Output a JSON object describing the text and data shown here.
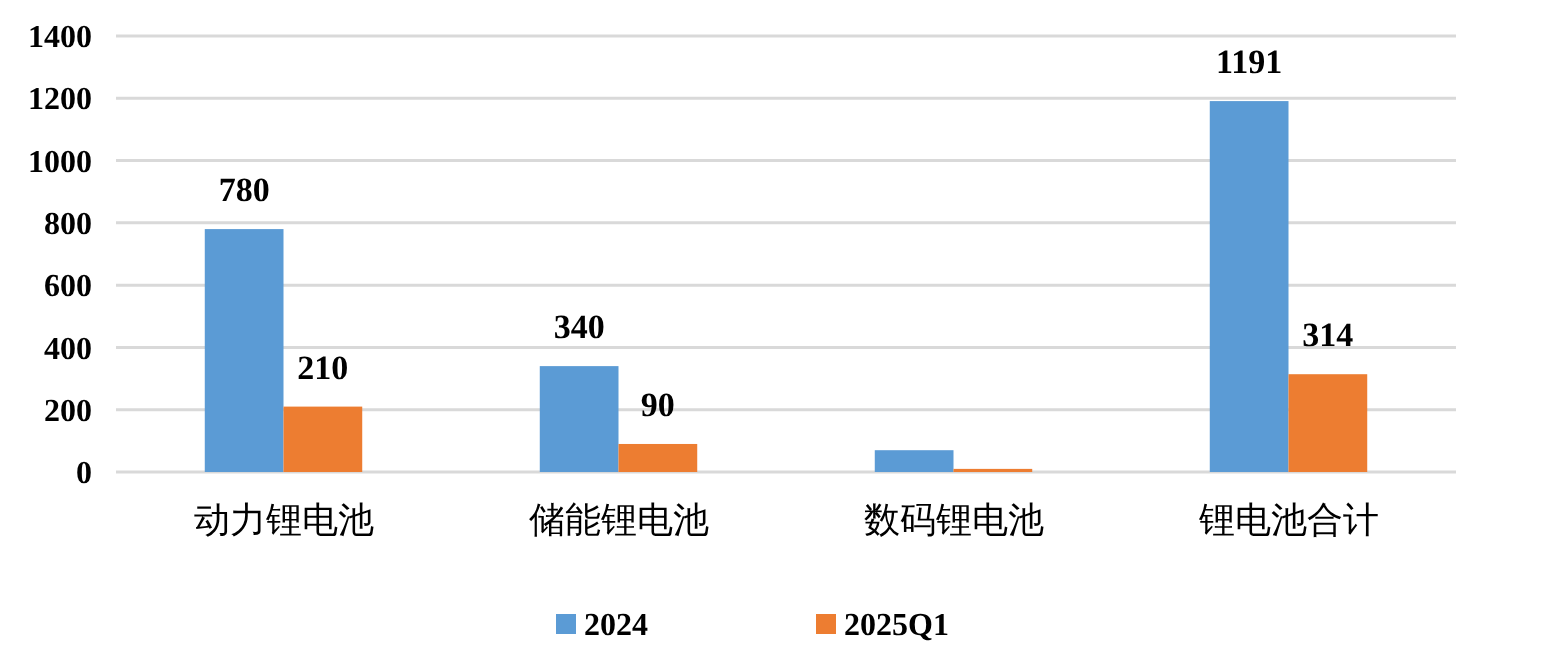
{
  "chart_data": {
    "type": "bar",
    "categories": [
      "动力锂电池",
      "储能锂电池",
      "数码锂电池",
      "锂电池合计"
    ],
    "series": [
      {
        "name": "2024",
        "color": "#5b9bd5",
        "values": [
          780,
          340,
          70,
          1191
        ],
        "value_labels": [
          "780",
          "340",
          null,
          "1191"
        ]
      },
      {
        "name": "2025Q1",
        "color": "#ed7d31",
        "values": [
          210,
          90,
          10,
          314
        ],
        "value_labels": [
          "210",
          "90",
          null,
          "314"
        ]
      }
    ],
    "ylim": [
      0,
      1400
    ],
    "yticks": [
      0,
      200,
      400,
      600,
      800,
      1000,
      1200,
      1400
    ],
    "grid": "y",
    "legend": "bottom"
  }
}
